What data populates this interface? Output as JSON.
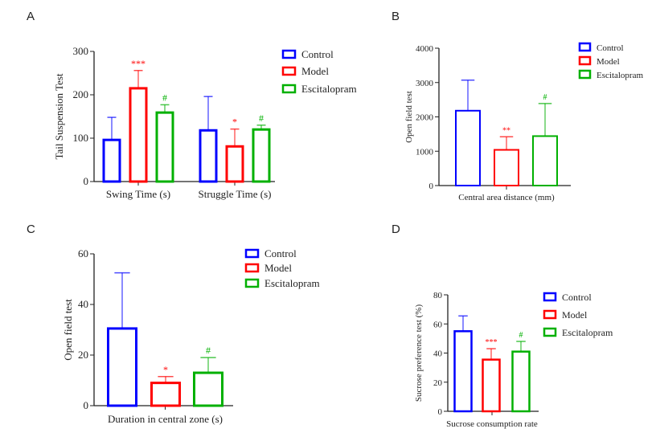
{
  "chart_data": [
    {
      "panel": "A",
      "type": "bar",
      "ylabel": "Tail Suspension Test",
      "ylim": [
        0,
        300
      ],
      "yticks": [
        0,
        100,
        200,
        300
      ],
      "categories": [
        "Swing Time (s)",
        "Struggle Time (s)"
      ],
      "series": [
        {
          "name": "Control",
          "color": "#0000ff",
          "values": [
            96,
            118
          ],
          "errors": [
            52,
            78
          ],
          "marks": [
            "",
            ""
          ]
        },
        {
          "name": "Model",
          "color": "#ff0000",
          "values": [
            215,
            81
          ],
          "errors": [
            41,
            40
          ],
          "marks": [
            "***",
            "*"
          ]
        },
        {
          "name": "Escitalopram",
          "color": "#00b000",
          "values": [
            159,
            120
          ],
          "errors": [
            18,
            10
          ],
          "marks": [
            "#",
            "#"
          ]
        }
      ],
      "legend": "right"
    },
    {
      "panel": "B",
      "type": "bar",
      "ylabel": "Open field test",
      "ylim": [
        0,
        4000
      ],
      "yticks": [
        0,
        1000,
        2000,
        3000,
        4000
      ],
      "categories": [
        "Central area distance (mm)"
      ],
      "series": [
        {
          "name": "Control",
          "color": "#0000ff",
          "values": [
            2180
          ],
          "errors": [
            890
          ],
          "marks": [
            ""
          ]
        },
        {
          "name": "Model",
          "color": "#ff0000",
          "values": [
            1040
          ],
          "errors": [
            380
          ],
          "marks": [
            "**"
          ]
        },
        {
          "name": "Escitalopram",
          "color": "#00b000",
          "values": [
            1440
          ],
          "errors": [
            950
          ],
          "marks": [
            "#"
          ]
        }
      ],
      "legend": "top-right"
    },
    {
      "panel": "C",
      "type": "bar",
      "ylabel": "Open field test",
      "ylim": [
        0,
        60
      ],
      "yticks": [
        0,
        20,
        40,
        60
      ],
      "categories": [
        "Duration in central zone (s)"
      ],
      "series": [
        {
          "name": "Control",
          "color": "#0000ff",
          "values": [
            30.5
          ],
          "errors": [
            22
          ],
          "marks": [
            ""
          ]
        },
        {
          "name": "Model",
          "color": "#ff0000",
          "values": [
            9
          ],
          "errors": [
            2.5
          ],
          "marks": [
            "*"
          ]
        },
        {
          "name": "Escitalopram",
          "color": "#00b000",
          "values": [
            13
          ],
          "errors": [
            6
          ],
          "marks": [
            "#"
          ]
        }
      ],
      "legend": "top-right"
    },
    {
      "panel": "D",
      "type": "bar",
      "ylabel": "Sucrose preference test (%)",
      "ylim": [
        0,
        80
      ],
      "yticks": [
        0,
        20,
        40,
        60,
        80
      ],
      "categories": [
        "Sucrose consumption rate"
      ],
      "series": [
        {
          "name": "Control",
          "color": "#0000ff",
          "values": [
            55
          ],
          "errors": [
            10.5
          ],
          "marks": [
            ""
          ]
        },
        {
          "name": "Model",
          "color": "#ff0000",
          "values": [
            35.5
          ],
          "errors": [
            7.5
          ],
          "marks": [
            "***"
          ]
        },
        {
          "name": "Escitalopram",
          "color": "#00b000",
          "values": [
            41
          ],
          "errors": [
            7
          ],
          "marks": [
            "#"
          ]
        }
      ],
      "legend": "top-right"
    }
  ]
}
